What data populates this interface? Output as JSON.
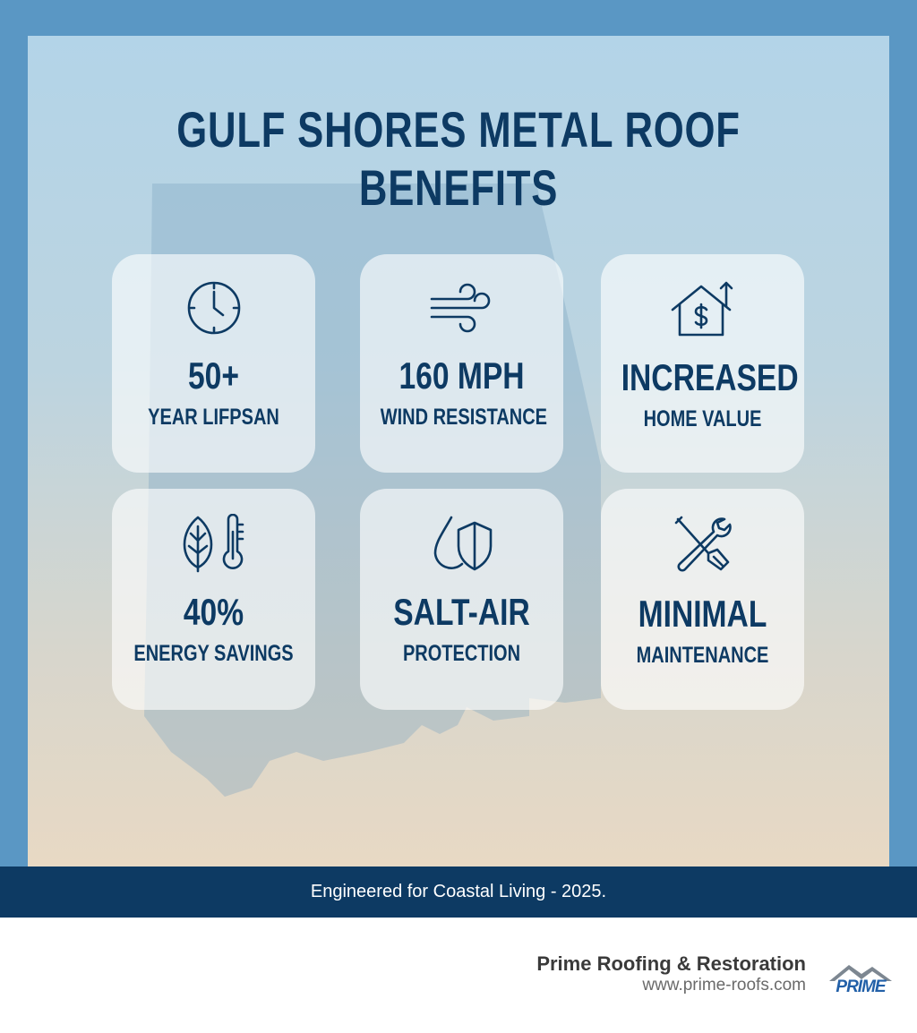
{
  "header": {
    "title": "GULF SHORES METAL ROOF BENEFITS"
  },
  "cards": [
    {
      "headline": "50+",
      "subline": "YEAR LIFPSAN"
    },
    {
      "headline": "160 MPH",
      "subline": "WIND RESISTANCE"
    },
    {
      "headline": "INCREASED",
      "subline": "HOME VALUE"
    },
    {
      "headline": "40%",
      "subline": "ENERGY SAVINGS"
    },
    {
      "headline": "SALT-AIR",
      "subline": "PROTECTION"
    },
    {
      "headline": "MINIMAL",
      "subline": "MAINTENANCE"
    }
  ],
  "banner": {
    "text": "Engineered for Coastal Living - 2025."
  },
  "footer": {
    "company": "Prime Roofing & Restoration",
    "url": "www.prime-roofs.com",
    "logo": "PRIME"
  }
}
